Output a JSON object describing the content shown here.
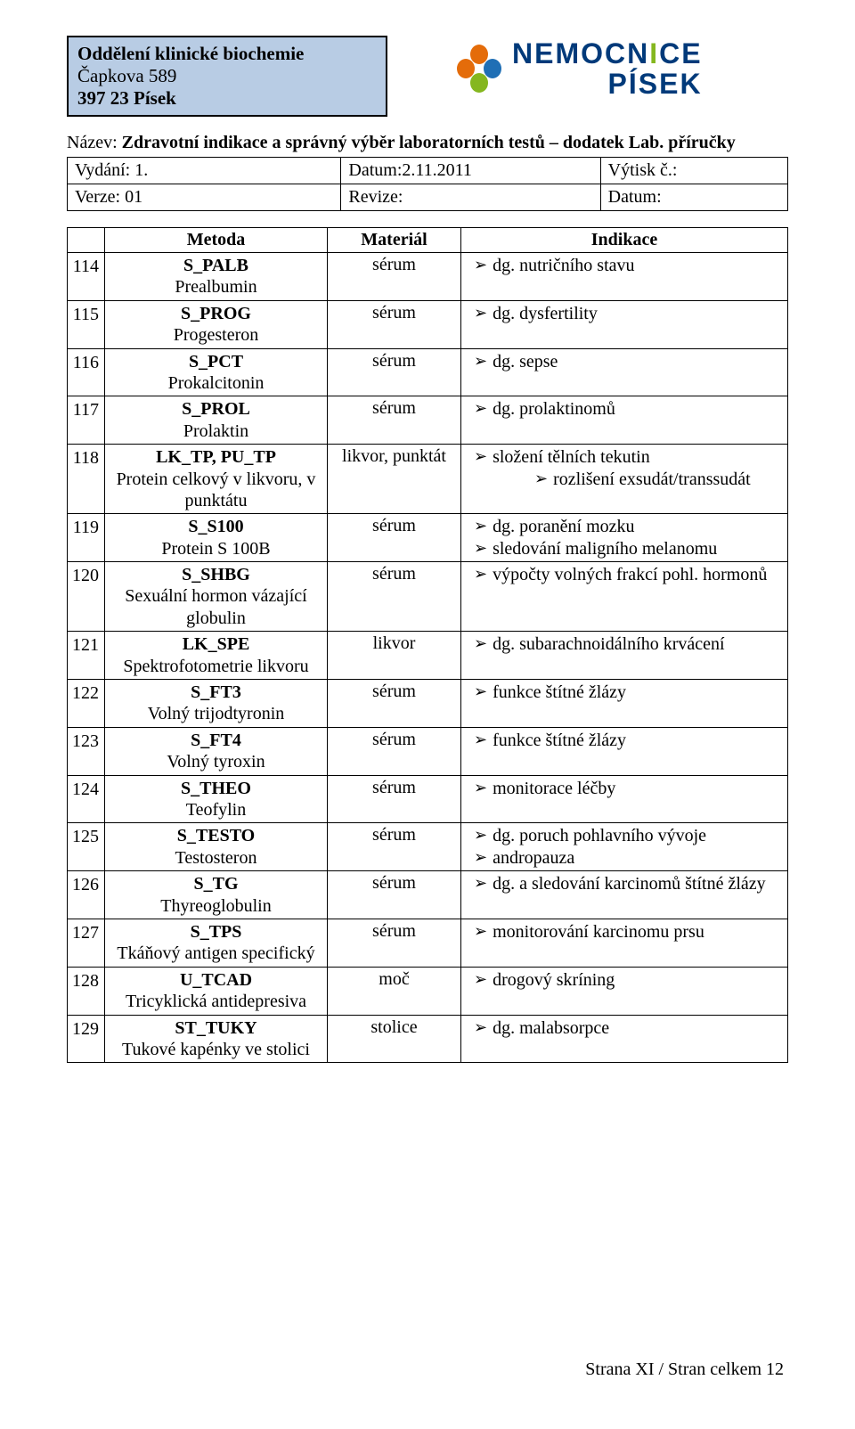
{
  "colors": {
    "header_bg": "#b8cce4",
    "border": "#000000",
    "logo_blue": "#003a7a",
    "logo_green": "#85b71f",
    "page_bg": "#ffffff"
  },
  "org": {
    "line1": "Oddělení klinické biochemie",
    "line2": "Čapkova 589",
    "line3": "397 23  Písek"
  },
  "logo": {
    "line1_a": "NEMOCN",
    "line1_b": "I",
    "line1_c": "CE",
    "line2": "PÍSEK"
  },
  "title": {
    "label": "Název: ",
    "value": "Zdravotní indikace a správný výběr laboratorních testů – dodatek Lab. příručky"
  },
  "meta": {
    "r1c1": "Vydání: 1.",
    "r1c2": "Datum:2.11.2011",
    "r1c3": "Výtisk č.:",
    "r2c1": "Verze: 01",
    "r2c2": "Revize:",
    "r2c3": "Datum:"
  },
  "columns": {
    "num": "",
    "method": "Metoda",
    "material": "Materiál",
    "indication": "Indikace"
  },
  "rows": [
    {
      "n": "114",
      "code": "S_PALB",
      "name": "Prealbumin",
      "material": "sérum",
      "ind": [
        {
          "t": "dg. nutričního stavu"
        }
      ]
    },
    {
      "n": "115",
      "code": "S_PROG",
      "name": "Progesteron",
      "material": "sérum",
      "ind": [
        {
          "t": "dg. dysfertility"
        }
      ]
    },
    {
      "n": "116",
      "code": "S_PCT",
      "name": "Prokalcitonin",
      "material": "sérum",
      "ind": [
        {
          "t": "dg. sepse"
        }
      ]
    },
    {
      "n": "117",
      "code": "S_PROL",
      "name": "Prolaktin",
      "material": "sérum",
      "ind": [
        {
          "t": "dg. prolaktinomů"
        }
      ]
    },
    {
      "n": "118",
      "code": "LK_TP, PU_TP",
      "name": "Protein celkový v likvoru, v punktátu",
      "material": "likvor, punktát",
      "ind": [
        {
          "t": "složení tělních tekutin"
        },
        {
          "t": "rozlišení exsudát/transsudát",
          "sub": true
        }
      ]
    },
    {
      "n": "119",
      "code": "S_S100",
      "name": "Protein S 100B",
      "material": "sérum",
      "ind": [
        {
          "t": "dg. poranění mozku"
        },
        {
          "t": "sledování maligního melanomu"
        }
      ]
    },
    {
      "n": "120",
      "code": "S_SHBG",
      "name": "Sexuální hormon vázající globulin",
      "material": "sérum",
      "ind": [
        {
          "t": "výpočty volných frakcí pohl. hormonů"
        }
      ]
    },
    {
      "n": "121",
      "code": "LK_SPE",
      "name": "Spektrofotometrie likvoru",
      "material": "likvor",
      "ind": [
        {
          "t": "dg. subarachnoidálního krvácení"
        }
      ]
    },
    {
      "n": "122",
      "code": "S_FT3",
      "name": "Volný trijodtyronin",
      "material": "sérum",
      "ind": [
        {
          "t": "funkce štítné žlázy"
        }
      ]
    },
    {
      "n": "123",
      "code": "S_FT4",
      "name": "Volný tyroxin",
      "material": "sérum",
      "ind": [
        {
          "t": "funkce štítné žlázy"
        }
      ]
    },
    {
      "n": "124",
      "code": "S_THEO",
      "name": "Teofylin",
      "material": "sérum",
      "ind": [
        {
          "t": "monitorace léčby"
        }
      ]
    },
    {
      "n": "125",
      "code": "S_TESTO",
      "name": "Testosteron",
      "material": "sérum",
      "ind": [
        {
          "t": "dg. poruch pohlavního vývoje"
        },
        {
          "t": "andropauza"
        }
      ]
    },
    {
      "n": "126",
      "code": "S_TG",
      "name": "Thyreoglobulin",
      "material": "sérum",
      "ind": [
        {
          "t": "dg. a sledování karcinomů štítné žlázy"
        }
      ]
    },
    {
      "n": "127",
      "code": "S_TPS",
      "name": "Tkáňový antigen specifický",
      "material": "sérum",
      "ind": [
        {
          "t": "monitorování karcinomu prsu"
        }
      ]
    },
    {
      "n": "128",
      "code": "U_TCAD",
      "name": "Tricyklická antidepresiva",
      "material": "moč",
      "ind": [
        {
          "t": "drogový skríning"
        }
      ]
    },
    {
      "n": "129",
      "code": "ST_TUKY",
      "name": "Tukové kapénky ve stolici",
      "material": "stolice",
      "ind": [
        {
          "t": "dg. malabsorpce"
        }
      ]
    }
  ],
  "footer": "Strana XI / Stran celkem 12",
  "arrow_glyph": "➢"
}
